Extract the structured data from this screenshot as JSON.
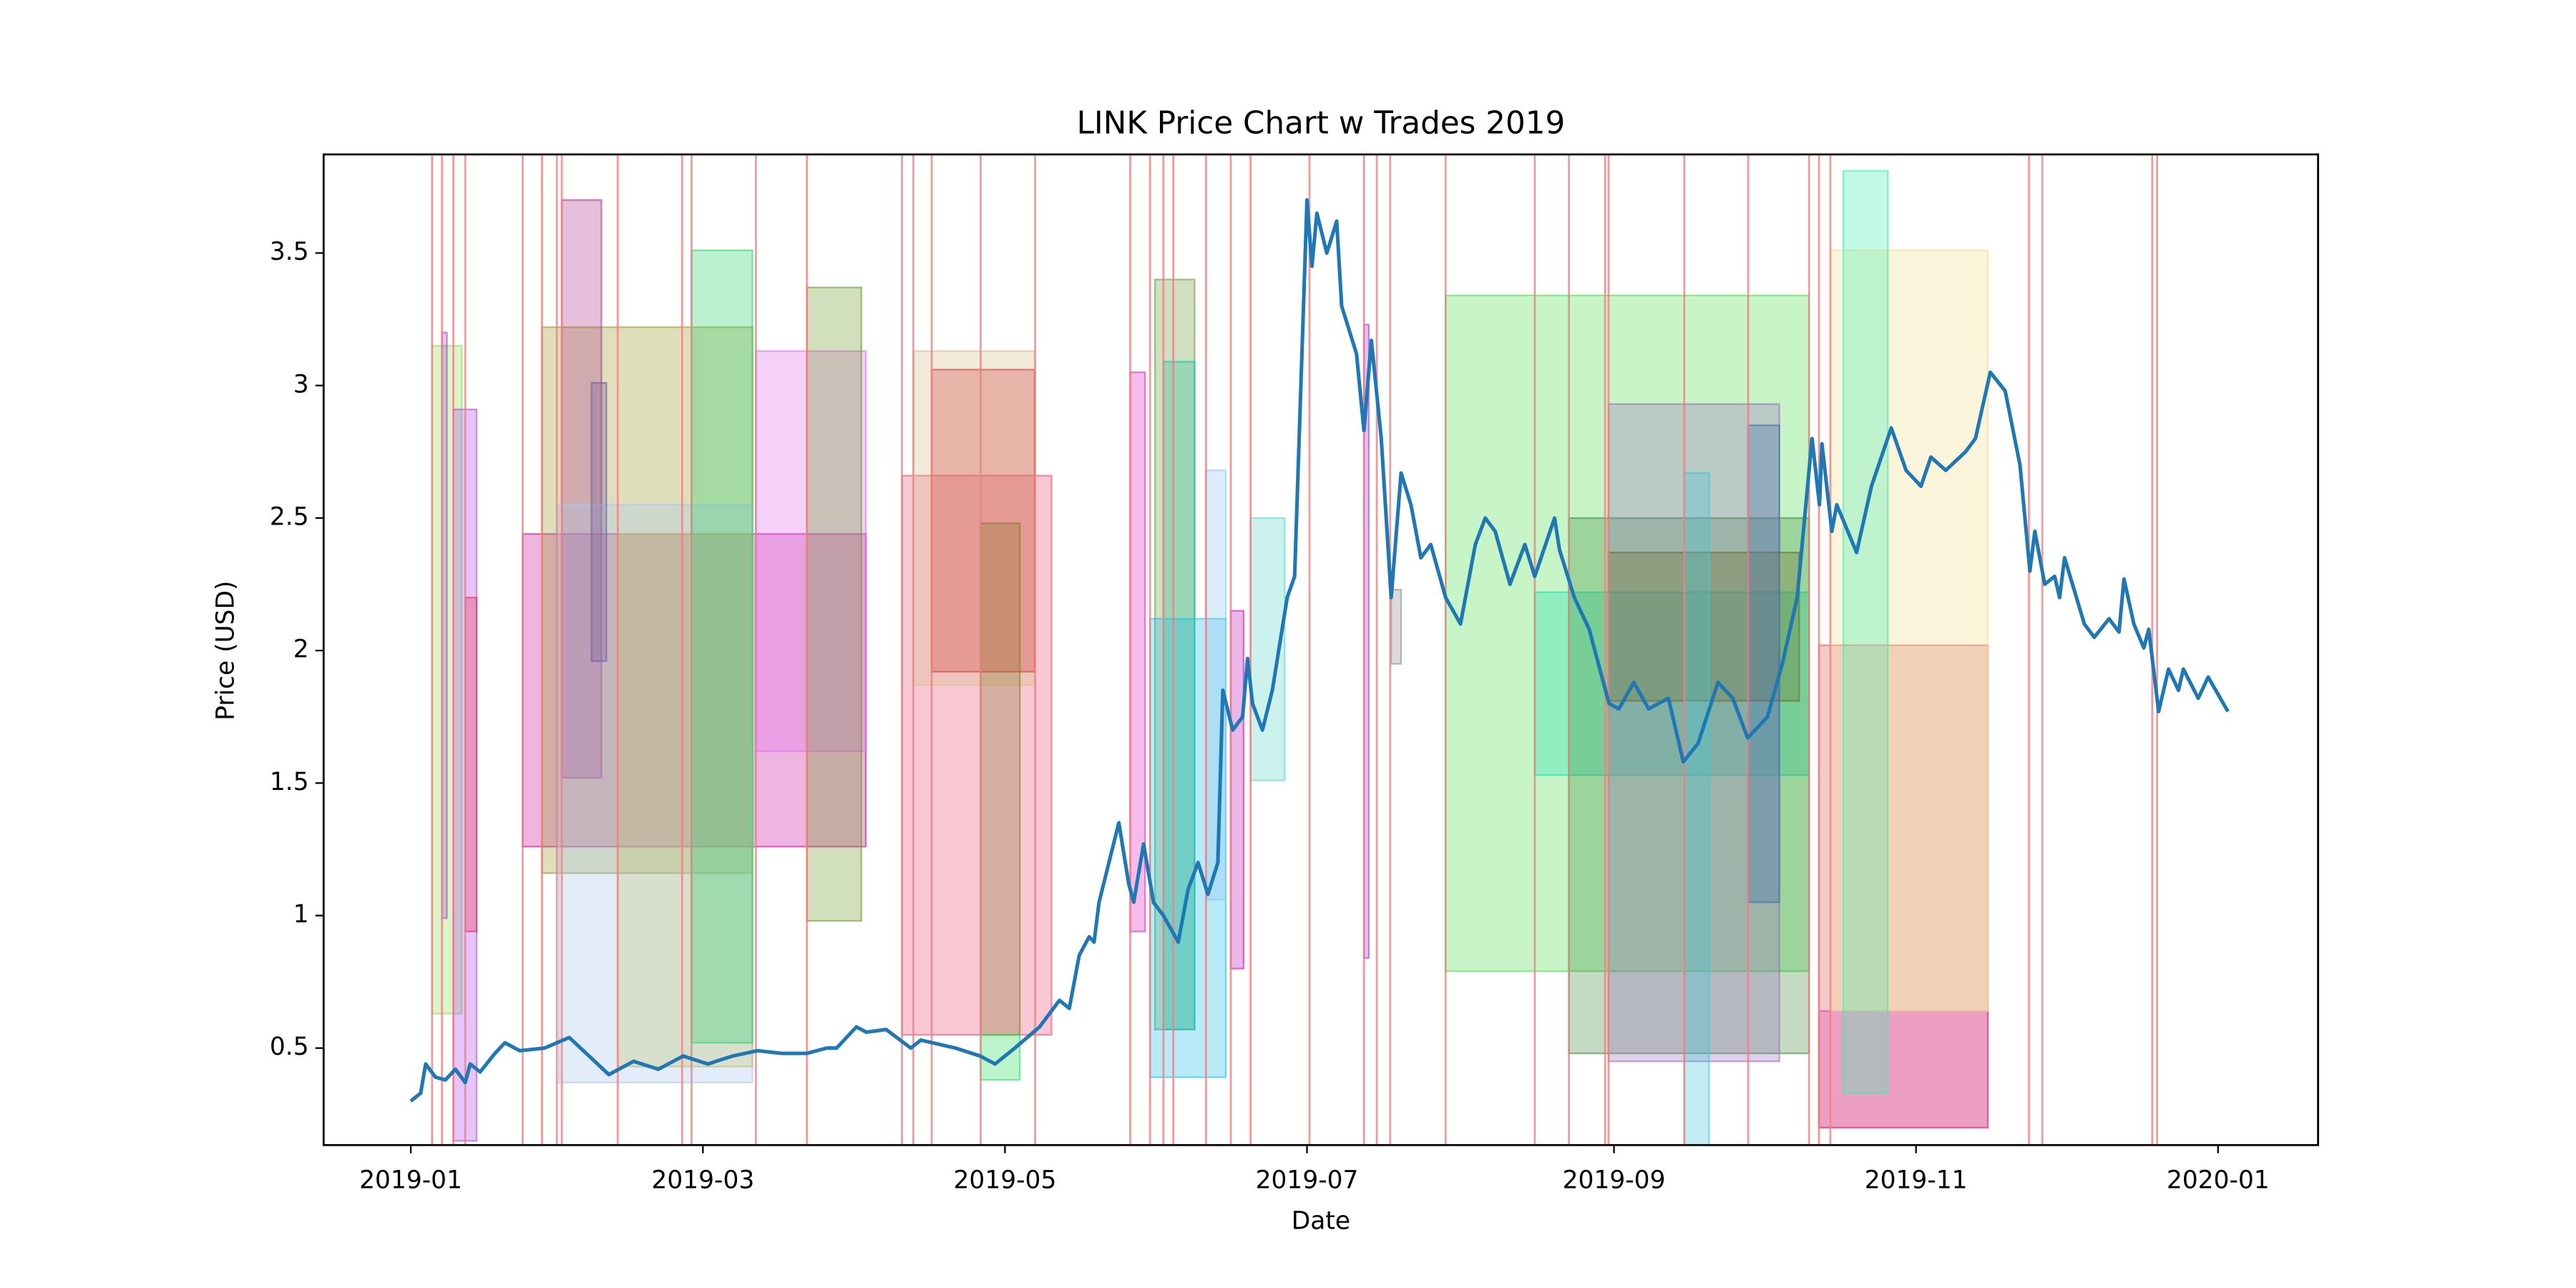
{
  "chart_data": {
    "type": "line",
    "title": "LINK Price Chart w Trades 2019",
    "x_label": "Date",
    "y_label": "Price (USD)",
    "xlim": [
      -17.6,
      385.2
    ],
    "xticks": [
      {
        "value": 0,
        "label": "2019-01"
      },
      {
        "value": 59,
        "label": "2019-03"
      },
      {
        "value": 120,
        "label": "2019-05"
      },
      {
        "value": 181,
        "label": "2019-07"
      },
      {
        "value": 243,
        "label": "2019-09"
      },
      {
        "value": 304,
        "label": "2019-11"
      },
      {
        "value": 365,
        "label": "2020-01"
      }
    ],
    "ylim": [
      0.134,
      3.872
    ],
    "yticks": [
      0.5,
      1.0,
      1.5,
      2.0,
      2.5,
      3.0,
      3.5
    ],
    "color": "#1f77b4",
    "x": [
      0,
      2,
      3,
      5,
      7,
      9,
      11,
      12,
      14,
      17,
      19,
      22,
      27,
      32,
      36,
      40,
      45,
      50,
      55,
      60,
      65,
      70,
      75,
      80,
      84,
      86,
      90,
      92,
      96,
      101,
      103,
      110,
      115,
      118,
      122,
      127,
      131,
      133,
      135,
      137,
      138,
      139,
      141,
      143,
      145,
      146,
      148,
      150,
      152,
      155,
      157,
      159,
      161,
      163,
      164,
      166,
      168,
      169,
      170,
      172,
      174,
      177,
      178.5,
      181,
      182,
      183,
      185,
      187,
      188,
      191,
      192.5,
      194,
      196,
      198,
      200,
      202,
      204,
      206,
      209,
      212,
      215,
      217,
      219,
      222,
      225,
      227,
      231,
      232,
      235,
      238,
      242,
      244,
      247,
      250,
      254,
      257,
      260,
      264,
      267,
      270,
      274,
      277,
      280,
      283,
      284.5,
      285,
      287,
      288,
      292,
      295,
      299,
      302,
      305,
      307,
      310,
      314,
      316,
      319,
      322,
      325,
      327,
      328,
      330,
      332,
      333,
      334,
      338,
      340,
      343,
      345,
      346,
      348,
      350,
      351,
      353,
      355,
      357,
      358,
      361,
      363,
      367
    ],
    "values": [
      0.3,
      0.33,
      0.44,
      0.39,
      0.38,
      0.42,
      0.37,
      0.44,
      0.41,
      0.48,
      0.52,
      0.49,
      0.5,
      0.54,
      0.47,
      0.4,
      0.45,
      0.42,
      0.47,
      0.44,
      0.47,
      0.49,
      0.48,
      0.48,
      0.5,
      0.5,
      0.58,
      0.56,
      0.57,
      0.5,
      0.53,
      0.5,
      0.47,
      0.44,
      0.5,
      0.58,
      0.68,
      0.65,
      0.85,
      0.92,
      0.9,
      1.05,
      1.2,
      1.35,
      1.12,
      1.05,
      1.27,
      1.05,
      1.0,
      0.9,
      1.1,
      1.2,
      1.08,
      1.2,
      1.85,
      1.7,
      1.75,
      1.97,
      1.8,
      1.7,
      1.85,
      2.2,
      2.28,
      3.7,
      3.45,
      3.65,
      3.5,
      3.62,
      3.3,
      3.12,
      2.83,
      3.17,
      2.8,
      2.2,
      2.67,
      2.55,
      2.35,
      2.4,
      2.2,
      2.1,
      2.4,
      2.5,
      2.45,
      2.25,
      2.4,
      2.28,
      2.5,
      2.38,
      2.2,
      2.08,
      1.8,
      1.78,
      1.88,
      1.78,
      1.82,
      1.58,
      1.65,
      1.88,
      1.82,
      1.67,
      1.75,
      1.95,
      2.2,
      2.8,
      2.55,
      2.78,
      2.45,
      2.55,
      2.37,
      2.62,
      2.84,
      2.68,
      2.62,
      2.73,
      2.68,
      2.75,
      2.8,
      3.05,
      2.98,
      2.7,
      2.3,
      2.45,
      2.25,
      2.28,
      2.2,
      2.35,
      2.1,
      2.05,
      2.12,
      2.07,
      2.27,
      2.1,
      2.01,
      2.08,
      1.77,
      1.93,
      1.85,
      1.93,
      1.82,
      1.9,
      1.77
    ],
    "signals": [
      4.3,
      6.3,
      8.6,
      11,
      22.6,
      26.5,
      29.5,
      30.5,
      41.8,
      54.8,
      56.7,
      69.7,
      80,
      99.2,
      101.5,
      105.2,
      115.1,
      126.1,
      145.3,
      149.3,
      152,
      154,
      160.6,
      165.6,
      169.6,
      181.5,
      192.5,
      195.1,
      197.8,
      209,
      227,
      233.9,
      241.2,
      241.9,
      257.2,
      270.1,
      282.4,
      284.4,
      286.7,
      326.8,
      329.5,
      351.7,
      352.7
    ],
    "signal_color": "#f08080",
    "trades": [
      {
        "x0": 4.3,
        "x1": 10.3,
        "y0": 0.63,
        "y1": 3.15,
        "color": "#8fdc5a"
      },
      {
        "x0": 6.3,
        "x1": 7.3,
        "y0": 0.99,
        "y1": 3.2,
        "color": "#9b59d0"
      },
      {
        "x0": 8.6,
        "x1": 13.3,
        "y0": 0.15,
        "y1": 2.91,
        "color": "#b04cf0"
      },
      {
        "x0": 11,
        "x1": 13.3,
        "y0": 0.94,
        "y1": 2.2,
        "color": "#e83050"
      },
      {
        "x0": 22.6,
        "x1": 91.9,
        "y0": 1.26,
        "y1": 2.44,
        "color": "#c8189a"
      },
      {
        "x0": 26.5,
        "x1": 69,
        "y0": 1.16,
        "y1": 3.22,
        "color": "#9a9a30"
      },
      {
        "x0": 30.5,
        "x1": 38.5,
        "y0": 1.52,
        "y1": 3.7,
        "color": "#b03c8c"
      },
      {
        "x0": 29.9,
        "x1": 69,
        "y0": 0.37,
        "y1": 2.55,
        "color": "#a8c8f0"
      },
      {
        "x0": 36.5,
        "x1": 39.5,
        "y0": 1.96,
        "y1": 3.01,
        "color": "#7060a0"
      },
      {
        "x0": 41.8,
        "x1": 69,
        "y0": 0.43,
        "y1": 2.44,
        "color": "#c0c070"
      },
      {
        "x0": 56.7,
        "x1": 69,
        "y0": 0.52,
        "y1": 3.51,
        "color": "#30d070"
      },
      {
        "x0": 69.7,
        "x1": 91.9,
        "y0": 1.62,
        "y1": 3.13,
        "color": "#e070f0"
      },
      {
        "x0": 80,
        "x1": 91,
        "y0": 0.98,
        "y1": 3.37,
        "color": "#709a30"
      },
      {
        "x0": 99.2,
        "x1": 129.4,
        "y0": 0.55,
        "y1": 2.66,
        "color": "#f05078"
      },
      {
        "x0": 101.5,
        "x1": 126,
        "y0": 1.87,
        "y1": 3.13,
        "color": "#d8c088"
      },
      {
        "x0": 105.2,
        "x1": 126,
        "y0": 1.92,
        "y1": 3.06,
        "color": "#d84040"
      },
      {
        "x0": 115.1,
        "x1": 123,
        "y0": 0.55,
        "y1": 2.48,
        "color": "#8a7a30"
      },
      {
        "x0": 115.1,
        "x1": 123,
        "y0": 0.38,
        "y1": 0.55,
        "color": "#30e060"
      },
      {
        "x0": 145.3,
        "x1": 148.3,
        "y0": 0.94,
        "y1": 3.05,
        "color": "#e030c0"
      },
      {
        "x0": 150.3,
        "x1": 158.3,
        "y0": 0.57,
        "y1": 3.4,
        "color": "#70a040"
      },
      {
        "x0": 152,
        "x1": 158.3,
        "y0": 0.57,
        "y1": 3.09,
        "color": "#20c0a0"
      },
      {
        "x0": 149.3,
        "x1": 164.6,
        "y0": 0.39,
        "y1": 2.12,
        "color": "#20c0f0"
      },
      {
        "x0": 160.6,
        "x1": 164.6,
        "y0": 1.06,
        "y1": 2.68,
        "color": "#90c8f0"
      },
      {
        "x0": 165.6,
        "x1": 168.2,
        "y0": 0.8,
        "y1": 2.15,
        "color": "#c020c0"
      },
      {
        "x0": 169.6,
        "x1": 176.5,
        "y0": 1.51,
        "y1": 2.5,
        "color": "#60d8c8"
      },
      {
        "x0": 192.5,
        "x1": 193.5,
        "y0": 0.84,
        "y1": 3.23,
        "color": "#a040e0"
      },
      {
        "x0": 198,
        "x1": 200,
        "y0": 1.95,
        "y1": 2.23,
        "color": "#909090"
      },
      {
        "x0": 209,
        "x1": 282.4,
        "y0": 0.79,
        "y1": 3.34,
        "color": "#50e050"
      },
      {
        "x0": 227,
        "x1": 282.4,
        "y0": 1.53,
        "y1": 2.22,
        "color": "#20e0b0"
      },
      {
        "x0": 233.9,
        "x1": 282.4,
        "y0": 0.48,
        "y1": 2.5,
        "color": "#409040"
      },
      {
        "x0": 241.9,
        "x1": 276.4,
        "y0": 0.45,
        "y1": 2.93,
        "color": "#a070c0"
      },
      {
        "x0": 241.9,
        "x1": 280.4,
        "y0": 1.81,
        "y1": 2.37,
        "color": "#707030"
      },
      {
        "x0": 257.2,
        "x1": 262.2,
        "y0": 0.1,
        "y1": 2.67,
        "color": "#40c8d8"
      },
      {
        "x0": 270.1,
        "x1": 276.4,
        "y0": 1.05,
        "y1": 2.85,
        "color": "#4070b0"
      },
      {
        "x0": 284.4,
        "x1": 318.5,
        "y0": 0.2,
        "y1": 2.02,
        "color": "#d86060"
      },
      {
        "x0": 284.4,
        "x1": 318.5,
        "y0": 0.2,
        "y1": 0.64,
        "color": "#e040b0"
      },
      {
        "x0": 286.7,
        "x1": 318.5,
        "y0": 0.64,
        "y1": 3.51,
        "color": "#f0e090"
      },
      {
        "x0": 289.3,
        "x1": 298.3,
        "y0": 0.33,
        "y1": 3.81,
        "color": "#40f0b0"
      }
    ]
  }
}
